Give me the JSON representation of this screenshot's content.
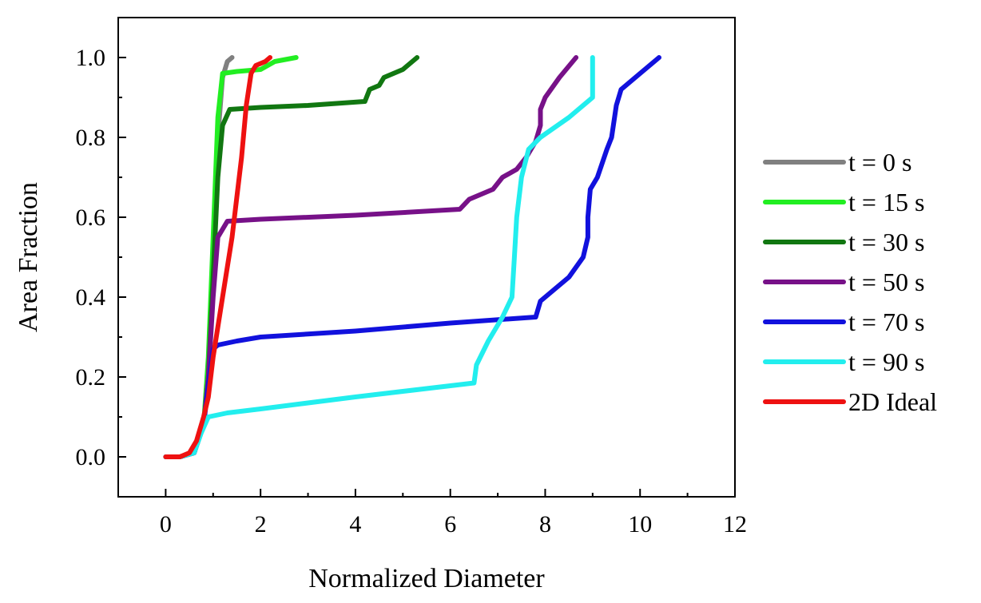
{
  "chart_data": {
    "type": "line",
    "xlabel": "Normalized Diameter",
    "ylabel": "Area Fraction",
    "xlim": [
      -1,
      12
    ],
    "ylim": [
      -0.1,
      1.1
    ],
    "xticks": [
      "0",
      "2",
      "4",
      "6",
      "8",
      "10",
      "12"
    ],
    "yticks": [
      "0.0",
      "0.2",
      "0.4",
      "0.6",
      "0.8",
      "1.0"
    ],
    "xtick_values": [
      0,
      2,
      4,
      6,
      8,
      10,
      12
    ],
    "ytick_values": [
      0.0,
      0.2,
      0.4,
      0.6,
      0.8,
      1.0
    ],
    "grid": false,
    "legend_position": "right",
    "series": [
      {
        "name": "t = 0 s",
        "color": "#808080",
        "points": [
          [
            0,
            0
          ],
          [
            0.3,
            0
          ],
          [
            0.6,
            0.01
          ],
          [
            0.8,
            0.08
          ],
          [
            0.9,
            0.2
          ],
          [
            1.0,
            0.5
          ],
          [
            1.1,
            0.8
          ],
          [
            1.2,
            0.95
          ],
          [
            1.3,
            0.99
          ],
          [
            1.4,
            1.0
          ]
        ]
      },
      {
        "name": "t = 15 s",
        "color": "#22ee22",
        "points": [
          [
            0,
            0
          ],
          [
            0.3,
            0
          ],
          [
            0.6,
            0.01
          ],
          [
            0.8,
            0.08
          ],
          [
            0.9,
            0.25
          ],
          [
            1.0,
            0.55
          ],
          [
            1.1,
            0.85
          ],
          [
            1.2,
            0.96
          ],
          [
            1.5,
            0.965
          ],
          [
            2.0,
            0.97
          ],
          [
            2.3,
            0.99
          ],
          [
            2.75,
            1.0
          ]
        ]
      },
      {
        "name": "t = 30 s",
        "color": "#117711",
        "points": [
          [
            0,
            0
          ],
          [
            0.3,
            0
          ],
          [
            0.6,
            0.01
          ],
          [
            0.8,
            0.08
          ],
          [
            0.9,
            0.2
          ],
          [
            1.0,
            0.45
          ],
          [
            1.1,
            0.7
          ],
          [
            1.2,
            0.83
          ],
          [
            1.35,
            0.87
          ],
          [
            2.0,
            0.875
          ],
          [
            3.0,
            0.88
          ],
          [
            4.2,
            0.89
          ],
          [
            4.3,
            0.92
          ],
          [
            4.5,
            0.93
          ],
          [
            4.6,
            0.95
          ],
          [
            5.0,
            0.97
          ],
          [
            5.3,
            1.0
          ]
        ]
      },
      {
        "name": "t = 50 s",
        "color": "#771188",
        "points": [
          [
            0,
            0
          ],
          [
            0.3,
            0
          ],
          [
            0.6,
            0.01
          ],
          [
            0.8,
            0.08
          ],
          [
            0.9,
            0.2
          ],
          [
            1.0,
            0.4
          ],
          [
            1.1,
            0.55
          ],
          [
            1.3,
            0.59
          ],
          [
            2.0,
            0.595
          ],
          [
            4.0,
            0.605
          ],
          [
            6.2,
            0.62
          ],
          [
            6.4,
            0.645
          ],
          [
            6.9,
            0.67
          ],
          [
            7.1,
            0.7
          ],
          [
            7.4,
            0.72
          ],
          [
            7.6,
            0.75
          ],
          [
            7.8,
            0.79
          ],
          [
            7.9,
            0.83
          ],
          [
            7.9,
            0.87
          ],
          [
            8.0,
            0.9
          ],
          [
            8.3,
            0.95
          ],
          [
            8.65,
            1.0
          ]
        ]
      },
      {
        "name": "t = 70 s",
        "color": "#1111dd",
        "points": [
          [
            0,
            0
          ],
          [
            0.3,
            0
          ],
          [
            0.6,
            0.01
          ],
          [
            0.8,
            0.08
          ],
          [
            0.9,
            0.18
          ],
          [
            1.0,
            0.27
          ],
          [
            1.1,
            0.28
          ],
          [
            1.5,
            0.29
          ],
          [
            2.0,
            0.3
          ],
          [
            4.0,
            0.315
          ],
          [
            6.0,
            0.335
          ],
          [
            7.8,
            0.35
          ],
          [
            7.9,
            0.39
          ],
          [
            8.1,
            0.41
          ],
          [
            8.5,
            0.45
          ],
          [
            8.8,
            0.5
          ],
          [
            8.9,
            0.55
          ],
          [
            8.9,
            0.6
          ],
          [
            8.95,
            0.67
          ],
          [
            9.1,
            0.7
          ],
          [
            9.3,
            0.77
          ],
          [
            9.4,
            0.8
          ],
          [
            9.5,
            0.88
          ],
          [
            9.6,
            0.92
          ],
          [
            10.0,
            0.96
          ],
          [
            10.4,
            1.0
          ]
        ]
      },
      {
        "name": "t = 90 s",
        "color": "#22eeee",
        "points": [
          [
            0,
            0
          ],
          [
            0.3,
            0
          ],
          [
            0.6,
            0.01
          ],
          [
            0.75,
            0.06
          ],
          [
            0.9,
            0.1
          ],
          [
            1.3,
            0.11
          ],
          [
            2.0,
            0.12
          ],
          [
            4.0,
            0.15
          ],
          [
            6.5,
            0.185
          ],
          [
            6.55,
            0.23
          ],
          [
            6.8,
            0.29
          ],
          [
            7.1,
            0.35
          ],
          [
            7.3,
            0.4
          ],
          [
            7.35,
            0.5
          ],
          [
            7.4,
            0.6
          ],
          [
            7.5,
            0.7
          ],
          [
            7.65,
            0.77
          ],
          [
            7.9,
            0.8
          ],
          [
            8.5,
            0.85
          ],
          [
            9.0,
            0.9
          ],
          [
            9.0,
            1.0
          ]
        ]
      },
      {
        "name": "2D Ideal",
        "color": "#ee1111",
        "points": [
          [
            0,
            0
          ],
          [
            0.3,
            0
          ],
          [
            0.5,
            0.01
          ],
          [
            0.65,
            0.04
          ],
          [
            0.8,
            0.1
          ],
          [
            0.9,
            0.15
          ],
          [
            1.0,
            0.25
          ],
          [
            1.2,
            0.4
          ],
          [
            1.4,
            0.55
          ],
          [
            1.6,
            0.75
          ],
          [
            1.7,
            0.88
          ],
          [
            1.8,
            0.96
          ],
          [
            1.9,
            0.98
          ],
          [
            2.1,
            0.99
          ],
          [
            2.2,
            1.0
          ]
        ]
      }
    ]
  }
}
